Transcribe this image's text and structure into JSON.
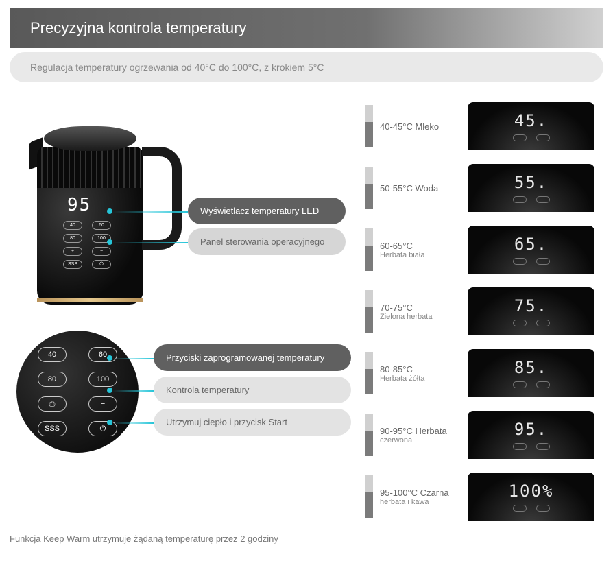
{
  "header": {
    "title": "Precyzyjna kontrola temperatury",
    "subtitle": "Regulacja temperatury ogrzewania od 40°C do 100°C, z krokiem 5°C"
  },
  "kettle": {
    "display_value": "95",
    "preset_buttons": [
      "40",
      "60",
      "80",
      "100",
      "+",
      "−",
      "SSS",
      "⏻"
    ],
    "callouts": {
      "led": "Wyświetlacz temperatury LED",
      "panel": "Panel sterowania operacyjnego"
    }
  },
  "panel": {
    "buttons": [
      "40",
      "60",
      "80",
      "100",
      "⎙",
      "−",
      "SSS",
      "⏻"
    ],
    "callouts": {
      "presets": "Przyciski zaprogramowanej temperatury",
      "control": "Kontrola temperatury",
      "keepwarm": "Utrzymuj ciepło i przycisk Start"
    }
  },
  "temp_rows": [
    {
      "range": "40-45°C Mleko",
      "sub": "",
      "display": "45."
    },
    {
      "range": "50-55°C Woda",
      "sub": "",
      "display": "55."
    },
    {
      "range": "60-65°C",
      "sub": "Herbata biała",
      "display": "65."
    },
    {
      "range": "70-75°C",
      "sub": "Zielona herbata",
      "display": "75."
    },
    {
      "range": "80-85°C",
      "sub": "Herbata żółta",
      "display": "85."
    },
    {
      "range": "90-95°C Herbata",
      "sub": "czerwona",
      "display": "95."
    },
    {
      "range": "95-100°C Czarna",
      "sub": "herbata i kawa",
      "display": "100%"
    }
  ],
  "footer": "Funkcja Keep Warm utrzymuje żądaną temperaturę przez 2 godziny",
  "colors": {
    "accent": "#26c5d8",
    "gold": "#cfa964",
    "header_dark": "#595959"
  }
}
